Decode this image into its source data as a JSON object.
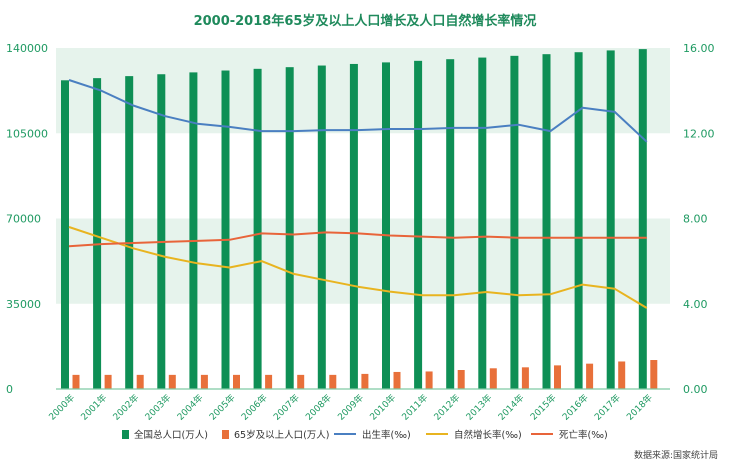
{
  "chart_data": {
    "type": "bar+line",
    "title": "2000-2018年65岁及以上人口增长及人口自然增长率情况",
    "categories": [
      "2000年",
      "2001年",
      "2002年",
      "2003年",
      "2004年",
      "2005年",
      "2006年",
      "2007年",
      "2008年",
      "2009年",
      "2010年",
      "2011年",
      "2012年",
      "2013年",
      "2014年",
      "2015年",
      "2016年",
      "2017年",
      "2018年"
    ],
    "left_axis": {
      "ylim": [
        0,
        140000
      ],
      "ticks": [
        "0",
        "35000",
        "70000",
        "105000",
        "140000"
      ]
    },
    "right_axis": {
      "ylim": [
        0,
        16
      ],
      "ticks": [
        "0.00",
        "4.00",
        "8.00",
        "12.00",
        "16.00"
      ]
    },
    "series": [
      {
        "name": "全国总人口(万人)",
        "type": "bar",
        "axis": "left",
        "color": "#0e8f55",
        "values": [
          126743,
          127627,
          128453,
          129227,
          129988,
          130756,
          131448,
          132129,
          132802,
          133450,
          134091,
          134735,
          135404,
          136072,
          136782,
          137462,
          138271,
          139008,
          139538
        ]
      },
      {
        "name": "65岁及以上人口(万人)",
        "type": "bar",
        "axis": "left",
        "color": "#e8703a",
        "values": [
          5800,
          5800,
          5800,
          5800,
          5800,
          5800,
          5800,
          5800,
          5800,
          6200,
          7000,
          7200,
          7800,
          8500,
          8900,
          9700,
          10400,
          11300,
          11900
        ]
      },
      {
        "name": "出生率(‰)",
        "type": "line",
        "axis": "right",
        "color": "#4a7fc1",
        "values": [
          14.5,
          14.0,
          13.3,
          12.8,
          12.45,
          12.3,
          12.1,
          12.1,
          12.15,
          12.15,
          12.2,
          12.2,
          12.25,
          12.25,
          12.4,
          12.1,
          13.2,
          13.0,
          11.6
        ]
      },
      {
        "name": "自然增长率(‰)",
        "type": "line",
        "axis": "right",
        "color": "#e8b420",
        "values": [
          7.6,
          7.1,
          6.6,
          6.2,
          5.9,
          5.7,
          6.0,
          5.4,
          5.1,
          4.8,
          4.57,
          4.4,
          4.4,
          4.55,
          4.4,
          4.45,
          4.9,
          4.7,
          3.8
        ]
      },
      {
        "name": "死亡率(‰)",
        "type": "line",
        "axis": "right",
        "color": "#e8643a",
        "values": [
          6.7,
          6.8,
          6.85,
          6.9,
          6.95,
          7.0,
          7.3,
          7.25,
          7.35,
          7.3,
          7.2,
          7.15,
          7.1,
          7.15,
          7.1,
          7.1,
          7.1,
          7.1,
          7.1
        ]
      }
    ],
    "legend": "bottom",
    "grid": false,
    "source": "数据来源:国家统计局"
  }
}
